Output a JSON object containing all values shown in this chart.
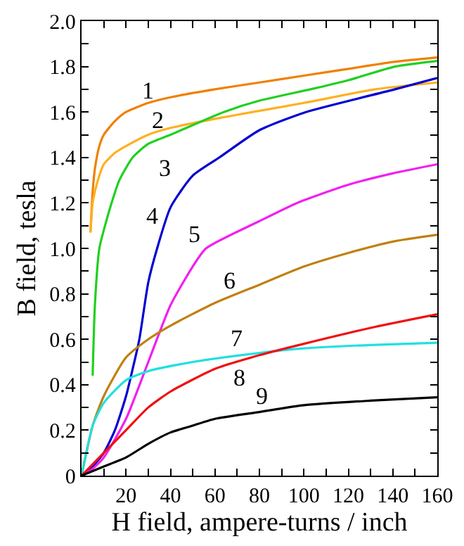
{
  "chart_data": {
    "type": "line",
    "xlabel": "H field, ampere-turns / inch",
    "ylabel": "B field, tesla",
    "xlim": [
      0,
      160
    ],
    "ylim": [
      0,
      2.0
    ],
    "xticks": [
      {
        "value": 10,
        "label": null
      },
      20,
      {
        "value": 30,
        "label": null
      },
      40,
      {
        "value": 50,
        "label": null
      },
      60,
      {
        "value": 70,
        "label": null
      },
      80,
      {
        "value": 90,
        "label": null
      },
      100,
      {
        "value": 110,
        "label": null
      },
      120,
      {
        "value": 130,
        "label": null
      },
      140,
      {
        "value": 150,
        "label": null
      },
      160
    ],
    "yticks": [
      0,
      {
        "value": 0.1,
        "label": null
      },
      0.2,
      {
        "value": 0.3,
        "label": null
      },
      0.4,
      {
        "value": 0.5,
        "label": null
      },
      0.6,
      {
        "value": 0.7,
        "label": null
      },
      0.8,
      {
        "value": 0.9,
        "label": null
      },
      {
        "value": 1.0,
        "label": "1.0"
      },
      {
        "value": 1.1,
        "label": null
      },
      1.2,
      {
        "value": 1.3,
        "label": null
      },
      1.4,
      {
        "value": 1.5,
        "label": null
      },
      1.6,
      {
        "value": 1.7,
        "label": null
      },
      1.8,
      {
        "value": 1.9,
        "label": null
      },
      {
        "value": 2.0,
        "label": "2.0"
      }
    ],
    "legend": false,
    "marker": "none",
    "line_style": "solid",
    "series": [
      {
        "name": "1",
        "color": "#f08000",
        "x": [
          4,
          5,
          6,
          8,
          10,
          15,
          20,
          30,
          40,
          60,
          80,
          100,
          120,
          140,
          160
        ],
        "values": [
          1.07,
          1.25,
          1.35,
          1.45,
          1.5,
          1.56,
          1.6,
          1.64,
          1.665,
          1.7,
          1.73,
          1.76,
          1.79,
          1.82,
          1.84
        ]
      },
      {
        "name": "2",
        "color": "#ffb020",
        "x": [
          4,
          5,
          6,
          8,
          10,
          15,
          20,
          30,
          40,
          60,
          77,
          100,
          132,
          160
        ],
        "values": [
          1.07,
          1.2,
          1.25,
          1.32,
          1.37,
          1.42,
          1.45,
          1.5,
          1.53,
          1.57,
          1.6,
          1.64,
          1.7,
          1.73
        ]
      },
      {
        "name": "3",
        "color": "#20d020",
        "x": [
          5,
          6,
          8,
          10,
          13.5,
          17,
          23,
          30,
          40,
          64,
          80,
          103,
          120,
          141,
          160
        ],
        "values": [
          0.44,
          0.75,
          1.0,
          1.08,
          1.2,
          1.3,
          1.4,
          1.46,
          1.5,
          1.6,
          1.65,
          1.7,
          1.74,
          1.8,
          1.825
        ]
      },
      {
        "name": "4",
        "color": "#0000d0",
        "x": [
          0,
          5,
          10,
          15,
          20,
          23,
          26,
          30,
          34,
          40,
          50,
          62,
          80,
          101,
          141,
          160
        ],
        "values": [
          0,
          0.04,
          0.1,
          0.2,
          0.35,
          0.47,
          0.6,
          0.85,
          1.0,
          1.18,
          1.32,
          1.4,
          1.52,
          1.6,
          1.7,
          1.75
        ]
      },
      {
        "name": "5",
        "color": "#f020f0",
        "x": [
          0,
          5,
          10,
          20,
          30,
          40,
          50,
          56,
          80,
          97,
          120,
          140,
          160
        ],
        "values": [
          0,
          0.03,
          0.08,
          0.25,
          0.5,
          0.75,
          0.92,
          1.0,
          1.12,
          1.2,
          1.28,
          1.33,
          1.37
        ]
      },
      {
        "name": "6",
        "color": "#c08010",
        "x": [
          0,
          5,
          10,
          20,
          30,
          40,
          60,
          80,
          100,
          120,
          140,
          160
        ],
        "values": [
          0,
          0.22,
          0.35,
          0.52,
          0.6,
          0.66,
          0.76,
          0.84,
          0.92,
          0.98,
          1.03,
          1.06
        ]
      },
      {
        "name": "7",
        "color": "#20e0e0",
        "x": [
          0,
          5,
          10,
          20,
          30,
          50,
          80,
          100,
          130,
          160
        ],
        "values": [
          0,
          0.22,
          0.32,
          0.42,
          0.46,
          0.5,
          0.54,
          0.56,
          0.575,
          0.585
        ]
      },
      {
        "name": "8",
        "color": "#f01010",
        "x": [
          0,
          10,
          20,
          30,
          40,
          60,
          80,
          100,
          130,
          160
        ],
        "values": [
          0,
          0.1,
          0.2,
          0.3,
          0.37,
          0.47,
          0.53,
          0.58,
          0.65,
          0.71
        ]
      },
      {
        "name": "9",
        "color": "#000000",
        "x": [
          0,
          10,
          20,
          30,
          40,
          50,
          60,
          80,
          100,
          130,
          160
        ],
        "values": [
          0,
          0.04,
          0.08,
          0.14,
          0.19,
          0.22,
          0.25,
          0.28,
          0.31,
          0.33,
          0.345
        ]
      }
    ]
  }
}
